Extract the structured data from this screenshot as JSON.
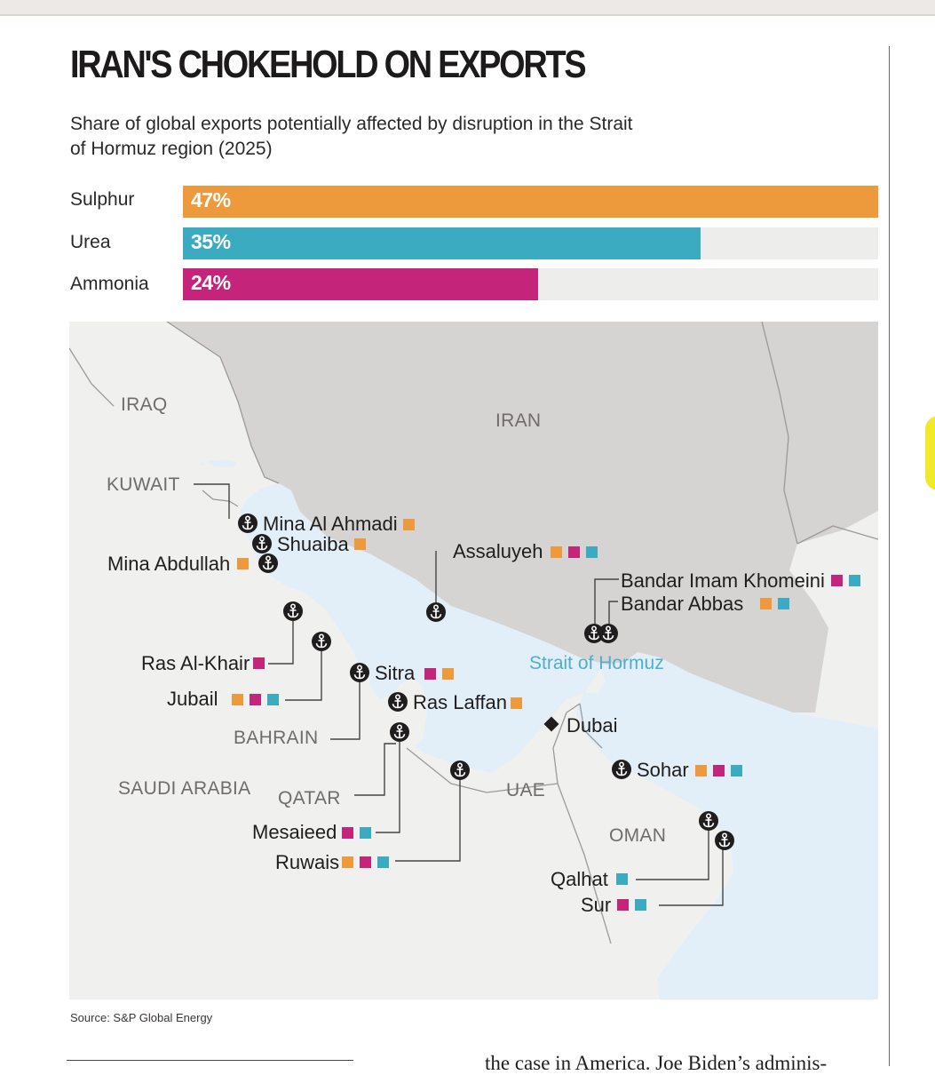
{
  "title": "IRAN'S CHOKEHOLD ON EXPORTS",
  "subtitle": "Share of global exports potentially affected by disruption in the Strait of Hormuz region (2025)",
  "colors": {
    "sulphur": "#ec9a3c",
    "urea": "#3aabc1",
    "ammonia": "#c4257a",
    "land": "#f0f0ef",
    "iran_land": "#d5d4d3",
    "sea": "#e2eff8",
    "strait": "#4eaed0"
  },
  "chart_data": {
    "type": "bar",
    "orientation": "horizontal",
    "categories": [
      "Sulphur",
      "Urea",
      "Ammonia"
    ],
    "values": [
      47,
      35,
      24
    ],
    "value_labels": [
      "47%",
      "35%",
      "24%"
    ],
    "xlim": [
      0,
      47
    ]
  },
  "map": {
    "countries": [
      {
        "id": "iraq",
        "label": "IRAQ"
      },
      {
        "id": "iran",
        "label": "IRAN"
      },
      {
        "id": "kuwait",
        "label": "KUWAIT"
      },
      {
        "id": "bahrain",
        "label": "BAHRAIN"
      },
      {
        "id": "saudi",
        "label": "SAUDI ARABIA"
      },
      {
        "id": "qatar",
        "label": "QATAR"
      },
      {
        "id": "uae",
        "label": "UAE"
      },
      {
        "id": "oman",
        "label": "OMAN"
      }
    ],
    "strait_label": "Strait of Hormuz",
    "city": {
      "label": "Dubai",
      "icon": "diamond-icon"
    },
    "ports": [
      {
        "id": "mina-al-ahmadi",
        "label": "Mina Al Ahmadi",
        "exports": [
          "sulphur"
        ]
      },
      {
        "id": "shuaiba",
        "label": "Shuaiba",
        "exports": [
          "sulphur"
        ]
      },
      {
        "id": "mina-abdullah",
        "label": "Mina Abdullah",
        "exports": [
          "sulphur"
        ]
      },
      {
        "id": "assaluyeh",
        "label": "Assaluyeh",
        "exports": [
          "sulphur",
          "ammonia",
          "urea"
        ]
      },
      {
        "id": "bandar-imam-khomeini",
        "label": "Bandar Imam Khomeini",
        "exports": [
          "ammonia",
          "urea"
        ]
      },
      {
        "id": "bandar-abbas",
        "label": "Bandar Abbas",
        "exports": [
          "sulphur",
          "urea"
        ]
      },
      {
        "id": "ras-al-khair",
        "label": "Ras Al-Khair",
        "exports": [
          "ammonia"
        ]
      },
      {
        "id": "jubail",
        "label": "Jubail",
        "exports": [
          "sulphur",
          "ammonia",
          "urea"
        ]
      },
      {
        "id": "sitra",
        "label": "Sitra",
        "exports": [
          "ammonia",
          "sulphur"
        ]
      },
      {
        "id": "ras-laffan",
        "label": "Ras Laffan",
        "exports": [
          "sulphur"
        ]
      },
      {
        "id": "sohar",
        "label": "Sohar",
        "exports": [
          "sulphur",
          "ammonia",
          "urea"
        ]
      },
      {
        "id": "mesaieed",
        "label": "Mesaieed",
        "exports": [
          "ammonia",
          "urea"
        ]
      },
      {
        "id": "ruwais",
        "label": "Ruwais",
        "exports": [
          "sulphur",
          "ammonia",
          "urea"
        ]
      },
      {
        "id": "qalhat",
        "label": "Qalhat",
        "exports": [
          "urea"
        ]
      },
      {
        "id": "sur",
        "label": "Sur",
        "exports": [
          "ammonia",
          "urea"
        ]
      }
    ],
    "port_icon": "anchor-icon"
  },
  "source": "Source: S&P Global Energy",
  "footer_text": "the case in America. Joe Biden’s adminis-"
}
